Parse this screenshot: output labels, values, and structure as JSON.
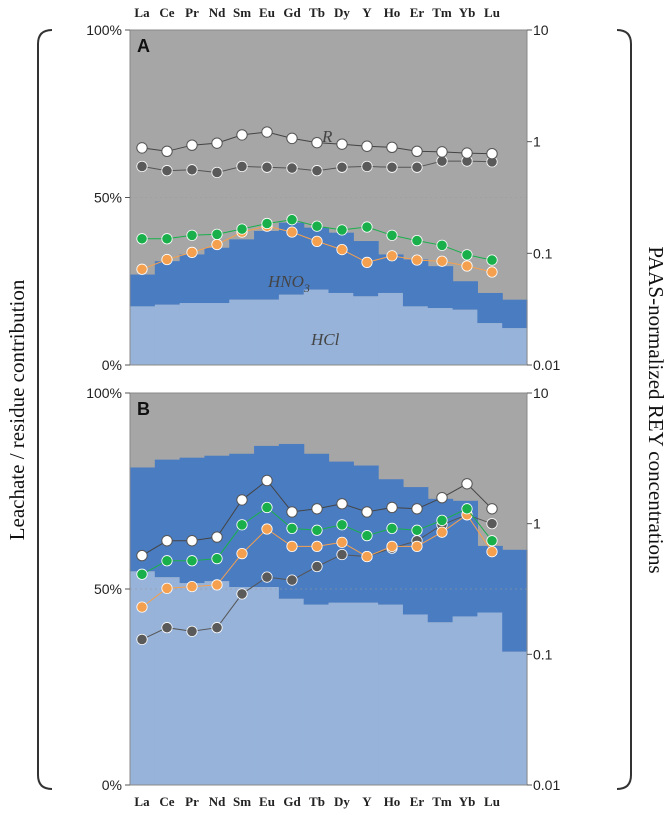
{
  "chart_data": {
    "type": "area",
    "categories": [
      "La",
      "Ce",
      "Pr",
      "Nd",
      "Sm",
      "Eu",
      "Gd",
      "Tb",
      "Dy",
      "Y",
      "Ho",
      "Er",
      "Tm",
      "Yb",
      "Lu"
    ],
    "left_axis": {
      "label": "Leachate / residue contribution",
      "ticks": [
        "0%",
        "50%",
        "100%"
      ],
      "range": [
        0,
        100
      ],
      "unit": "%"
    },
    "right_axis": {
      "label": "PAAS-normalized REY concentrations",
      "ticks": [
        "0.01",
        "0.1",
        "1",
        "10"
      ],
      "range": [
        0.01,
        10
      ],
      "scale": "log"
    },
    "colors": {
      "residue": "#a6a6a6",
      "hno3": "#4a7cc2",
      "hcl": "#97b3d9",
      "white_series": "#ffffff",
      "dark_series": "#5a5a5a",
      "green_series": "#19b04b",
      "orange_series": "#f5a04e"
    },
    "panels": [
      {
        "label": "A",
        "region_labels": {
          "residue": "R",
          "hno3": "HNO",
          "hno3_sub": "3",
          "hcl": "HCl"
        },
        "stack_percent": {
          "hcl": [
            17.5,
            18,
            18.5,
            18.5,
            19.5,
            19.5,
            21,
            22.5,
            21.5,
            20.5,
            21.5,
            17.5,
            17,
            16.5,
            12.5,
            11
          ],
          "hno3_top": [
            27,
            31,
            33,
            35,
            37.5,
            40,
            42.5,
            41,
            39.5,
            37,
            33,
            31.5,
            29.5,
            25,
            21.5,
            19.5
          ]
        },
        "series": [
          {
            "name": "white",
            "values": [
              0.88,
              0.82,
              0.93,
              0.97,
              1.15,
              1.22,
              1.07,
              0.98,
              0.95,
              0.91,
              0.89,
              0.82,
              0.81,
              0.79,
              0.78
            ]
          },
          {
            "name": "dark",
            "values": [
              0.6,
              0.55,
              0.56,
              0.53,
              0.6,
              0.59,
              0.58,
              0.55,
              0.59,
              0.6,
              0.59,
              0.59,
              0.67,
              0.67,
              0.66
            ]
          },
          {
            "name": "green",
            "values": [
              0.135,
              0.135,
              0.145,
              0.148,
              0.165,
              0.185,
              0.2,
              0.175,
              0.162,
              0.172,
              0.145,
              0.13,
              0.118,
              0.097,
              0.087
            ]
          },
          {
            "name": "orange",
            "values": [
              0.072,
              0.088,
              0.102,
              0.12,
              0.155,
              0.175,
              0.155,
              0.128,
              0.108,
              0.083,
              0.095,
              0.087,
              0.085,
              0.077,
              0.068
            ]
          }
        ]
      },
      {
        "label": "B",
        "stack_percent": {
          "hcl": [
            54.5,
            53,
            51.5,
            52,
            50.5,
            50.5,
            47.5,
            46,
            46.5,
            46.5,
            46,
            43.5,
            41.5,
            43,
            44,
            34
          ],
          "hno3_top": [
            81,
            83,
            83.5,
            84,
            84.5,
            86.5,
            87,
            84.5,
            82.5,
            81.5,
            78,
            76,
            73,
            72.5,
            61,
            60
          ]
        },
        "series": [
          {
            "name": "white",
            "values": [
              0.57,
              0.74,
              0.74,
              0.79,
              1.52,
              2.14,
              1.23,
              1.3,
              1.42,
              1.23,
              1.33,
              1.3,
              1.58,
              2.02,
              1.3
            ]
          },
          {
            "name": "dark",
            "values": [
              0.13,
              0.16,
              0.15,
              0.16,
              0.29,
              0.39,
              0.37,
              0.47,
              0.58,
              0.56,
              0.65,
              0.74,
              0.98,
              1.17,
              1.0
            ]
          },
          {
            "name": "green",
            "values": [
              0.41,
              0.52,
              0.52,
              0.54,
              0.98,
              1.33,
              0.92,
              0.89,
              0.98,
              0.81,
              0.92,
              0.89,
              1.06,
              1.3,
              0.74
            ]
          },
          {
            "name": "orange",
            "values": [
              0.23,
              0.32,
              0.33,
              0.34,
              0.59,
              0.91,
              0.67,
              0.67,
              0.72,
              0.56,
              0.67,
              0.67,
              0.86,
              1.17,
              0.61
            ]
          }
        ]
      }
    ]
  }
}
